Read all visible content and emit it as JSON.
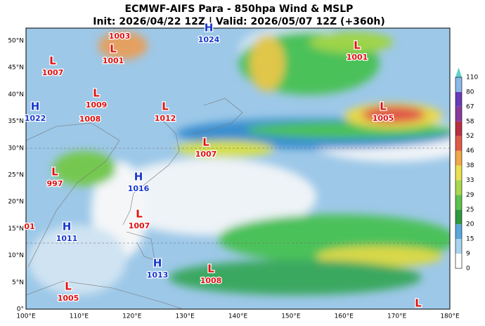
{
  "header": {
    "title": "ECMWF-AIFS Para  - 850hpa Wind & MSLP",
    "subtitle": "Init: 2026/04/22 12Z | Valid: 2026/05/07 12Z (+360h)"
  },
  "map": {
    "latitude_labels": [
      "0°",
      "5°N",
      "10°N",
      "15°N",
      "20°N",
      "25°N",
      "30°N",
      "35°N",
      "40°N",
      "45°N",
      "50°N"
    ],
    "longitude_labels": [
      "100°E",
      "110°E",
      "120°E",
      "130°E",
      "140°E",
      "150°E",
      "160°E",
      "170°E",
      "180°E"
    ],
    "pressure_centers": [
      {
        "value": "1003"
      },
      {
        "symbol": "L",
        "value": "1001"
      },
      {
        "symbol": "H",
        "value": "1024"
      },
      {
        "symbol": "L",
        "value": "1007"
      },
      {
        "symbol": "L",
        "value": "1001"
      },
      {
        "symbol": "H",
        "value": "1022"
      },
      {
        "symbol": "L",
        "value": "1009"
      },
      {
        "value": "1008"
      },
      {
        "symbol": "L",
        "value": "1012"
      },
      {
        "symbol": "L",
        "value": "1005"
      },
      {
        "symbol": "L",
        "value": "1007"
      },
      {
        "symbol": "L",
        "value": "997"
      },
      {
        "symbol": "H",
        "value": "1016"
      },
      {
        "symbol": "L",
        "value": "1007"
      },
      {
        "value": "01"
      },
      {
        "symbol": "H",
        "value": "1011"
      },
      {
        "symbol": "H",
        "value": "1013"
      },
      {
        "symbol": "L",
        "value": "1008"
      },
      {
        "symbol": "L",
        "value": "1005"
      },
      {
        "symbol": "L"
      }
    ],
    "colorbar": {
      "labels": [
        0,
        9,
        15,
        20,
        25,
        29,
        33,
        38,
        46,
        52,
        58,
        67,
        80,
        110
      ]
    }
  }
}
